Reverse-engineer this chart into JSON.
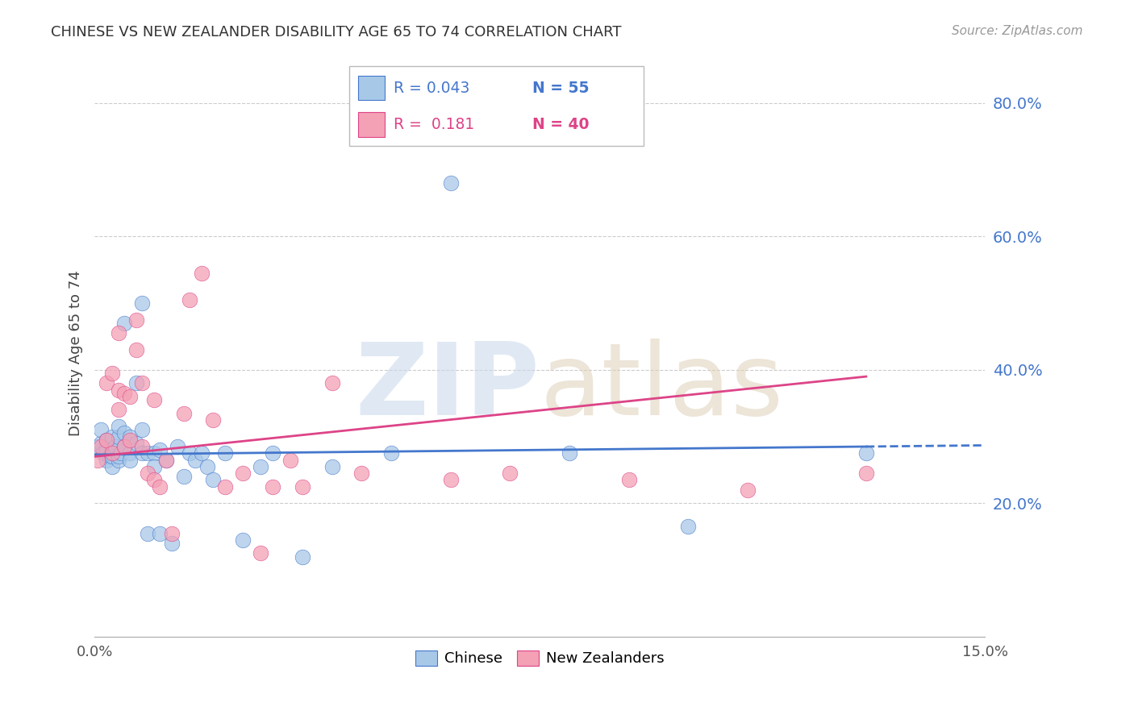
{
  "title": "CHINESE VS NEW ZEALANDER DISABILITY AGE 65 TO 74 CORRELATION CHART",
  "source": "Source: ZipAtlas.com",
  "ylabel": "Disability Age 65 to 74",
  "ylim": [
    0.0,
    0.85
  ],
  "xlim": [
    0.0,
    0.15
  ],
  "color_chinese": "#a8c8e8",
  "color_nz": "#f4a0b5",
  "line_chinese": "#4477cc",
  "line_nz": "#dd4488",
  "chinese_x": [
    0.0005,
    0.001,
    0.001,
    0.0015,
    0.002,
    0.002,
    0.002,
    0.0025,
    0.003,
    0.003,
    0.003,
    0.003,
    0.0035,
    0.004,
    0.004,
    0.004,
    0.004,
    0.0045,
    0.005,
    0.005,
    0.005,
    0.006,
    0.006,
    0.006,
    0.007,
    0.007,
    0.008,
    0.008,
    0.008,
    0.009,
    0.009,
    0.01,
    0.01,
    0.011,
    0.011,
    0.012,
    0.013,
    0.014,
    0.015,
    0.016,
    0.017,
    0.018,
    0.019,
    0.02,
    0.022,
    0.025,
    0.028,
    0.03,
    0.035,
    0.04,
    0.05,
    0.06,
    0.08,
    0.1,
    0.13
  ],
  "chinese_y": [
    0.285,
    0.29,
    0.31,
    0.275,
    0.28,
    0.295,
    0.265,
    0.27,
    0.28,
    0.3,
    0.255,
    0.27,
    0.285,
    0.265,
    0.3,
    0.27,
    0.315,
    0.275,
    0.285,
    0.305,
    0.47,
    0.3,
    0.275,
    0.265,
    0.29,
    0.38,
    0.275,
    0.31,
    0.5,
    0.275,
    0.155,
    0.275,
    0.255,
    0.28,
    0.155,
    0.265,
    0.14,
    0.285,
    0.24,
    0.275,
    0.265,
    0.275,
    0.255,
    0.235,
    0.275,
    0.145,
    0.255,
    0.275,
    0.12,
    0.255,
    0.275,
    0.68,
    0.275,
    0.165,
    0.275
  ],
  "nz_x": [
    0.0005,
    0.001,
    0.002,
    0.002,
    0.003,
    0.003,
    0.004,
    0.004,
    0.004,
    0.005,
    0.005,
    0.006,
    0.006,
    0.007,
    0.007,
    0.008,
    0.008,
    0.009,
    0.01,
    0.01,
    0.011,
    0.012,
    0.013,
    0.015,
    0.016,
    0.018,
    0.02,
    0.022,
    0.025,
    0.028,
    0.03,
    0.033,
    0.035,
    0.04,
    0.045,
    0.06,
    0.07,
    0.09,
    0.11,
    0.13
  ],
  "nz_y": [
    0.265,
    0.285,
    0.295,
    0.38,
    0.275,
    0.395,
    0.34,
    0.455,
    0.37,
    0.285,
    0.365,
    0.36,
    0.295,
    0.475,
    0.43,
    0.38,
    0.285,
    0.245,
    0.355,
    0.235,
    0.225,
    0.265,
    0.155,
    0.335,
    0.505,
    0.545,
    0.325,
    0.225,
    0.245,
    0.125,
    0.225,
    0.265,
    0.225,
    0.38,
    0.245,
    0.235,
    0.245,
    0.235,
    0.22,
    0.245
  ],
  "legend_r_chinese": "R = 0.043",
  "legend_n_chinese": "N = 55",
  "legend_r_nz": "R =  0.181",
  "legend_n_nz": "N = 40"
}
